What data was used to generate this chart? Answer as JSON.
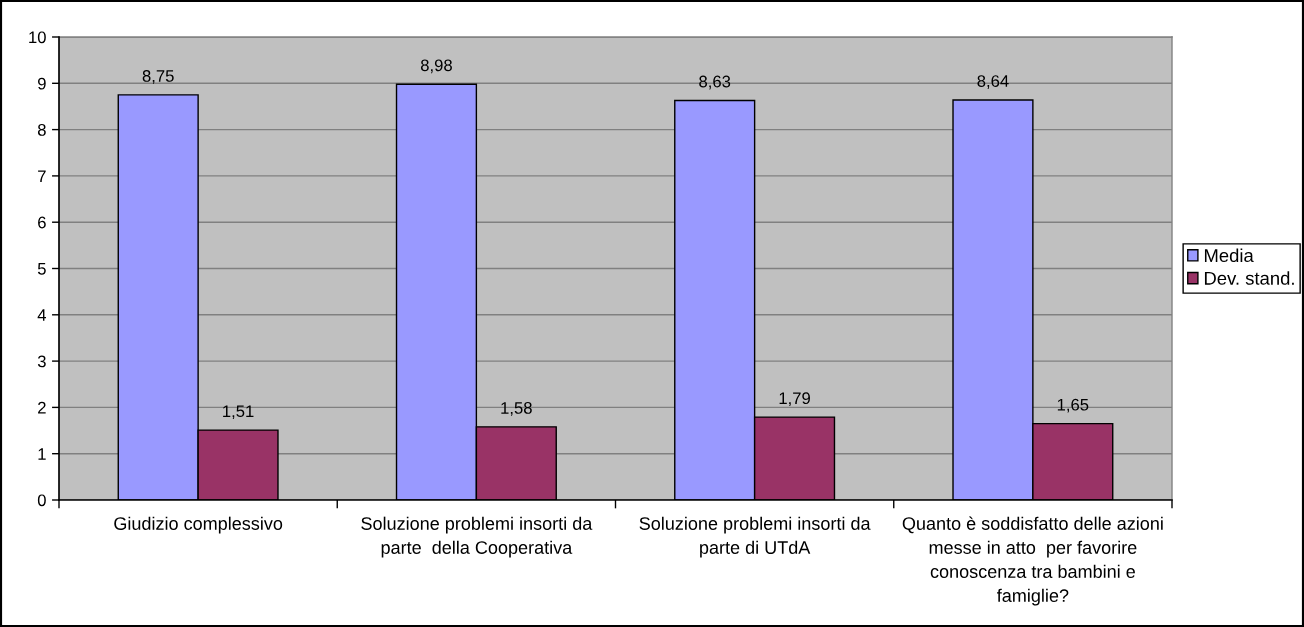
{
  "chart_data": {
    "type": "bar",
    "categories": [
      "Giudizio complessivo",
      "Soluzione problemi insorti da\nparte  della Cooperativa",
      "Soluzione problemi insorti da\nparte di UTdA",
      "Quanto è soddisfatto delle azioni\nmesse in atto  per favorire\nconoscenza tra bambini e\nfamiglie?"
    ],
    "series": [
      {
        "name": "Media",
        "color": "#9999ff",
        "values": [
          8.75,
          8.98,
          8.63,
          8.64
        ],
        "value_labels": [
          "8,75",
          "8,98",
          "8,63",
          "8,64"
        ]
      },
      {
        "name": "Dev. stand.",
        "color": "#993366",
        "values": [
          1.51,
          1.58,
          1.79,
          1.65
        ],
        "value_labels": [
          "1,51",
          "1,58",
          "1,79",
          "1,65"
        ]
      }
    ],
    "ylim": [
      0,
      10
    ],
    "yticks": [
      0,
      1,
      2,
      3,
      4,
      5,
      6,
      7,
      8,
      9,
      10
    ],
    "grid": "y",
    "legend": "right"
  }
}
